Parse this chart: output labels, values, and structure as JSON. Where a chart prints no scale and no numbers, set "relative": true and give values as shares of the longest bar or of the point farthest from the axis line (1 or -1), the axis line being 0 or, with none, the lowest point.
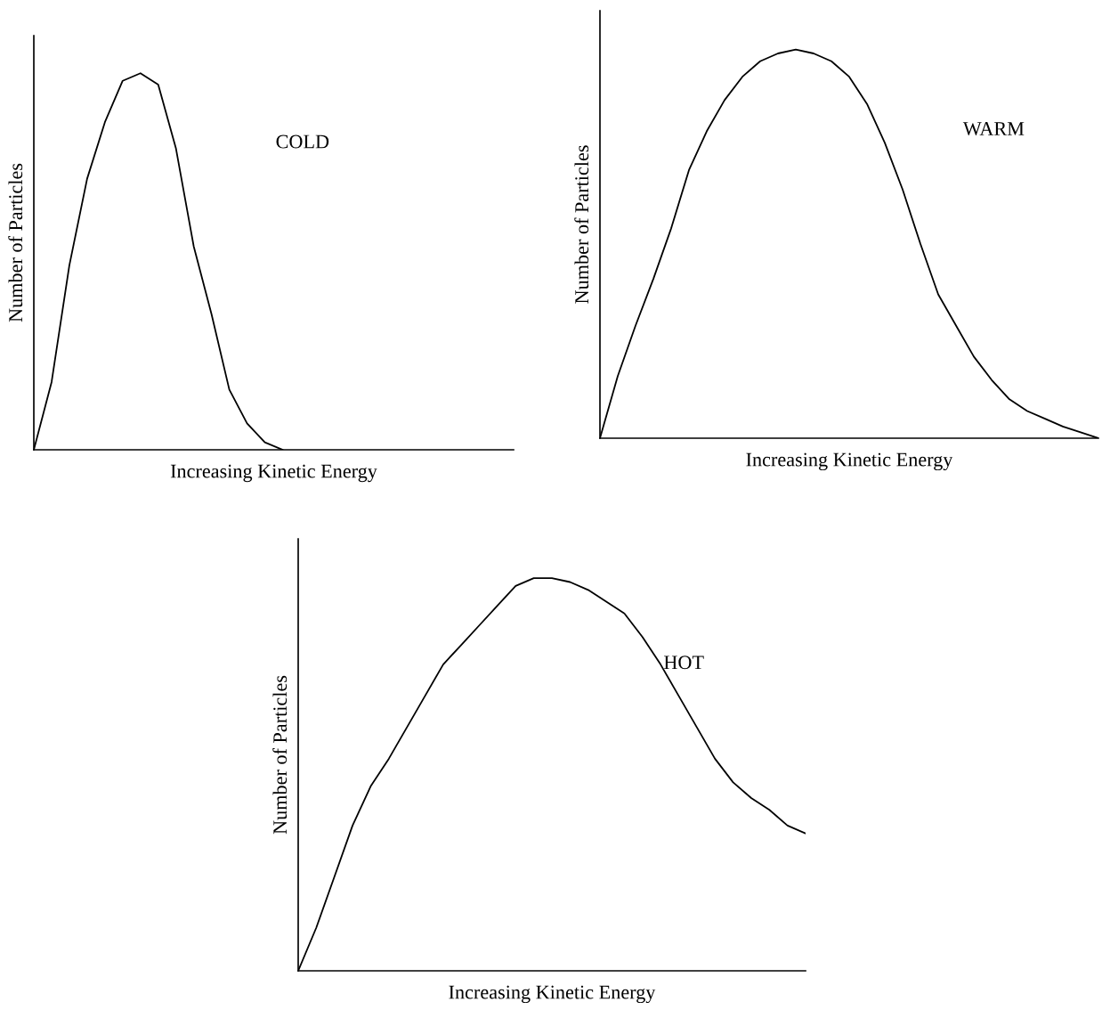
{
  "chart_data": [
    {
      "type": "line",
      "relative": true,
      "xlabel": "Increasing Kinetic Energy",
      "ylabel": "Number of Particles",
      "annotations": [
        "COLD"
      ],
      "marker": "none",
      "line_style": "solid",
      "categories": [
        null,
        null,
        null,
        null,
        null,
        null,
        null,
        null,
        null,
        null,
        null,
        null,
        null,
        null,
        null,
        null,
        null,
        null,
        null,
        null,
        null,
        null,
        null,
        null,
        null,
        null,
        null,
        null
      ],
      "series": [
        {
          "color": "#000000",
          "values": [
            0,
            0.18,
            0.49,
            0.72,
            0.87,
            0.98,
            1.0,
            0.97,
            0.8,
            0.54,
            0.36,
            0.16,
            0.07,
            0.02,
            0,
            null,
            null,
            null,
            null,
            null,
            null,
            null,
            null,
            null,
            null,
            null,
            null,
            null
          ]
        }
      ]
    },
    {
      "type": "line",
      "relative": true,
      "xlabel": "Increasing Kinetic Energy",
      "ylabel": "Number of Particles",
      "annotations": [
        "WARM"
      ],
      "marker": "none",
      "line_style": "solid",
      "categories": [
        null,
        null,
        null,
        null,
        null,
        null,
        null,
        null,
        null,
        null,
        null,
        null,
        null,
        null,
        null,
        null,
        null,
        null,
        null,
        null,
        null,
        null,
        null,
        null,
        null,
        null,
        null,
        null,
        null
      ],
      "series": [
        {
          "color": "#000000",
          "values": [
            0,
            0.16,
            0.29,
            0.41,
            0.54,
            0.69,
            0.79,
            0.87,
            0.93,
            0.97,
            0.99,
            1.0,
            0.99,
            0.97,
            0.93,
            0.86,
            0.76,
            0.64,
            0.5,
            0.37,
            0.29,
            0.21,
            0.15,
            0.1,
            0.07,
            0.05,
            0.03,
            0.015,
            0
          ]
        }
      ]
    },
    {
      "type": "line",
      "relative": true,
      "xlabel": "Increasing Kinetic Energy",
      "ylabel": "Number of Particles",
      "annotations": [
        "HOT"
      ],
      "marker": "none",
      "line_style": "solid",
      "categories": [
        null,
        null,
        null,
        null,
        null,
        null,
        null,
        null,
        null,
        null,
        null,
        null,
        null,
        null,
        null,
        null,
        null,
        null,
        null,
        null,
        null,
        null,
        null,
        null,
        null,
        null,
        null,
        null,
        null
      ],
      "series": [
        {
          "color": "#000000",
          "values": [
            0,
            0.11,
            0.24,
            0.37,
            0.47,
            0.54,
            0.62,
            0.7,
            0.78,
            0.83,
            0.88,
            0.93,
            0.98,
            1.0,
            1.0,
            0.99,
            0.97,
            0.94,
            0.91,
            0.85,
            0.78,
            0.7,
            0.62,
            0.54,
            0.48,
            0.44,
            0.41,
            0.37,
            0.35
          ]
        }
      ]
    }
  ]
}
